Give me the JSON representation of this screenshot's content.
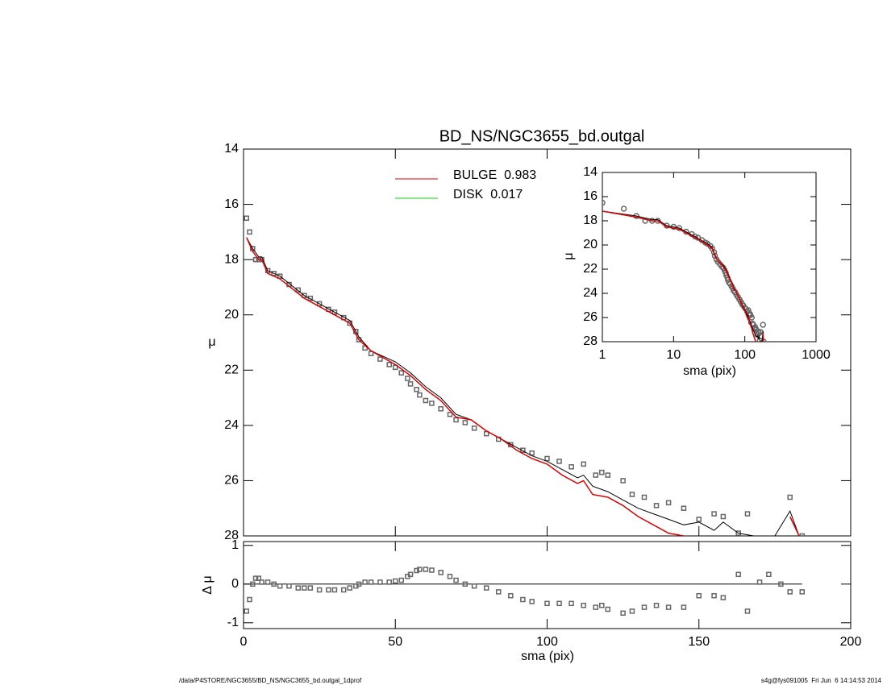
{
  "chart_data": [
    {
      "type": "line",
      "title": "BD_NS/NGC3655_bd.outgal",
      "ylabel": "μ",
      "xlim": [
        0,
        200
      ],
      "xticks": [
        0,
        50,
        100,
        150,
        200
      ],
      "ylim": [
        28,
        14
      ],
      "yticks": [
        14,
        16,
        18,
        20,
        22,
        24,
        26,
        28
      ],
      "observed": {
        "color": "#666666",
        "x": [
          1,
          2,
          3,
          4,
          5,
          6,
          8,
          10,
          12,
          15,
          18,
          20,
          22,
          25,
          28,
          30,
          33,
          35,
          37,
          38,
          40,
          42,
          45,
          48,
          50,
          52,
          54,
          55,
          57,
          58,
          60,
          62,
          65,
          68,
          70,
          73,
          76,
          80,
          84,
          88,
          92,
          95,
          100,
          104,
          108,
          112,
          116,
          118,
          120,
          125,
          128,
          132,
          136,
          140,
          145,
          150,
          155,
          158,
          163,
          166,
          170,
          173,
          177,
          180,
          184
        ],
        "values": [
          16.5,
          17.0,
          17.6,
          18.0,
          18.0,
          18.0,
          18.4,
          18.5,
          18.6,
          18.9,
          19.1,
          19.3,
          19.4,
          19.6,
          19.8,
          19.9,
          20.1,
          20.3,
          20.6,
          20.9,
          21.2,
          21.4,
          21.6,
          21.8,
          21.9,
          22.1,
          22.3,
          22.5,
          22.7,
          22.9,
          23.1,
          23.2,
          23.4,
          23.6,
          23.8,
          23.9,
          24.1,
          24.3,
          24.5,
          24.7,
          24.9,
          25.0,
          25.2,
          25.3,
          25.5,
          25.4,
          25.8,
          25.7,
          25.8,
          26.0,
          26.5,
          26.6,
          26.9,
          26.8,
          27.0,
          27.4,
          27.2,
          27.3,
          27.9,
          27.2,
          null,
          null,
          null,
          26.6,
          28.0
        ]
      },
      "model_x": [
        1,
        3,
        5,
        6,
        8,
        12,
        20,
        30,
        35,
        38,
        42,
        50,
        55,
        60,
        65,
        70,
        75,
        80,
        85,
        90,
        95,
        100,
        105,
        110,
        112,
        115,
        120,
        125,
        130,
        135,
        140,
        145,
        150,
        155,
        158,
        163,
        168,
        175,
        180,
        183
      ],
      "total": {
        "color": "#000000",
        "values": [
          17.2,
          17.6,
          17.9,
          17.9,
          18.4,
          18.6,
          19.3,
          19.9,
          20.2,
          20.8,
          21.3,
          21.7,
          22.1,
          22.6,
          23.0,
          23.6,
          23.8,
          24.2,
          24.5,
          24.8,
          25.1,
          25.3,
          25.6,
          25.9,
          25.8,
          26.2,
          26.4,
          26.7,
          27.0,
          27.2,
          27.4,
          27.6,
          27.5,
          27.8,
          27.5,
          27.9,
          28.0,
          28.0,
          27.1,
          28.0
        ]
      },
      "bulge": {
        "color": "#e00000",
        "values": [
          17.2,
          17.7,
          18.0,
          18.0,
          18.5,
          18.7,
          19.4,
          20.0,
          20.3,
          20.9,
          21.3,
          21.8,
          22.2,
          22.7,
          23.1,
          23.7,
          23.8,
          24.2,
          24.5,
          24.9,
          25.2,
          25.4,
          25.8,
          26.1,
          26.0,
          26.5,
          26.6,
          26.9,
          27.3,
          27.6,
          27.9,
          28.0,
          null,
          null,
          null,
          null,
          null,
          null,
          27.3,
          28.0
        ]
      },
      "legend": [
        {
          "label": "BULGE  0.983",
          "color": "#e00000"
        },
        {
          "label": "DISK  0.017",
          "color": "#00dd00"
        }
      ]
    },
    {
      "type": "scatter",
      "xlabel": "sma (pix)",
      "ylabel": "Δ μ",
      "xlim": [
        0,
        200
      ],
      "xticks": [
        0,
        50,
        100,
        150,
        200
      ],
      "ylim": [
        -1.15,
        1.1
      ],
      "yticks": [
        -1,
        0,
        1
      ],
      "color": "#666666",
      "values": [
        -0.7,
        -0.4,
        0.0,
        0.15,
        0.15,
        0.05,
        0.05,
        0.0,
        -0.05,
        -0.05,
        -0.1,
        -0.1,
        -0.1,
        -0.15,
        -0.15,
        -0.15,
        -0.15,
        -0.1,
        -0.05,
        0.0,
        0.05,
        0.05,
        0.05,
        0.05,
        0.08,
        0.1,
        0.2,
        0.25,
        0.35,
        0.38,
        0.38,
        0.36,
        0.3,
        0.2,
        0.1,
        0.0,
        -0.05,
        -0.1,
        -0.2,
        -0.3,
        -0.4,
        -0.45,
        -0.5,
        -0.5,
        -0.5,
        -0.55,
        -0.6,
        -0.55,
        -0.65,
        -0.75,
        -0.7,
        -0.6,
        -0.55,
        -0.6,
        -0.6,
        -0.3,
        -0.3,
        -0.35,
        0.25,
        -0.7,
        0.05,
        0.25,
        0.0,
        -0.2,
        -0.2
      ]
    },
    {
      "type": "line",
      "xscale": "log",
      "xlabel": "sma (pix)",
      "ylabel": "μ",
      "xlim": [
        1,
        1000
      ],
      "xticks": [
        1,
        10,
        100,
        1000
      ],
      "ylim": [
        28,
        14
      ],
      "yticks": [
        14,
        16,
        18,
        20,
        22,
        24,
        26,
        28
      ]
    }
  ],
  "footer": {
    "left": "/data/P4STORE/NGC3655/BD_NS/NGC3655_bd.outgal_1dprof",
    "right": "s4g@fys091005  Fri Jun  6 14:14:53 2014"
  }
}
